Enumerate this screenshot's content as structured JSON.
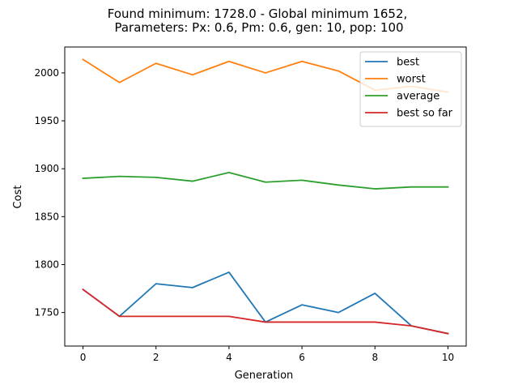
{
  "chart_data": {
    "type": "line",
    "title_line1": "Found minimum: 1728.0 - Global minimum 1652,",
    "title_line2": "Parameters: Px: 0.6, Pm: 0.6, gen: 10, pop: 100",
    "xlabel": "Generation",
    "ylabel": "Cost",
    "xlim": [
      -0.5,
      10.5
    ],
    "ylim": [
      1715,
      2027
    ],
    "xticks": [
      0,
      2,
      4,
      6,
      8,
      10
    ],
    "yticks": [
      1750,
      1800,
      1850,
      1900,
      1950,
      2000
    ],
    "grid": false,
    "legend_position": "top-right",
    "x": [
      0,
      1,
      2,
      3,
      4,
      5,
      6,
      7,
      8,
      9,
      10
    ],
    "series": [
      {
        "name": "best",
        "color": "#1f77b4",
        "values": [
          1774,
          1746,
          1780,
          1776,
          1792,
          1740,
          1758,
          1750,
          1770,
          1736,
          1728
        ]
      },
      {
        "name": "worst",
        "color": "#ff7f0e",
        "values": [
          2014,
          1990,
          2010,
          1998,
          2012,
          2000,
          2012,
          2002,
          1982,
          1986,
          1980
        ]
      },
      {
        "name": "average",
        "color": "#2ca02c",
        "values": [
          1890,
          1892,
          1891,
          1887,
          1896,
          1886,
          1888,
          1883,
          1879,
          1881,
          1881
        ]
      },
      {
        "name": "best so far",
        "color": "#d62728",
        "values": [
          1774,
          1746,
          1746,
          1746,
          1746,
          1740,
          1740,
          1740,
          1740,
          1736,
          1728
        ]
      }
    ]
  }
}
